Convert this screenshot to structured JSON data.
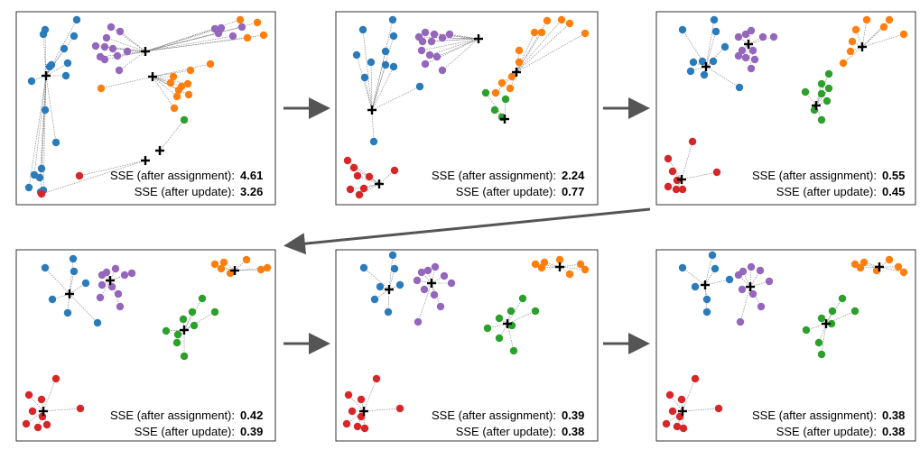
{
  "colors": {
    "blue": "#2b7bba",
    "purple": "#9467bd",
    "orange": "#ff7f0e",
    "green": "#2ca02c",
    "red": "#d62728",
    "centroid": "#000000",
    "arrow": "#555555"
  },
  "sse_label_assignment": "SSE (after assignment):",
  "sse_label_update": "SSE (after update):",
  "panels": [
    {
      "sse_assignment": "4.61",
      "sse_update": "3.26"
    },
    {
      "sse_assignment": "2.24",
      "sse_update": "0.77"
    },
    {
      "sse_assignment": "0.55",
      "sse_update": "0.45"
    },
    {
      "sse_assignment": "0.42",
      "sse_update": "0.39"
    },
    {
      "sse_assignment": "0.39",
      "sse_update": "0.38"
    },
    {
      "sse_assignment": "0.38",
      "sse_update": "0.38"
    }
  ],
  "arrows": [
    {
      "from": "panel-1",
      "to": "panel-2"
    },
    {
      "from": "panel-2",
      "to": "panel-3"
    },
    {
      "from": "panel-3",
      "to": "panel-4"
    },
    {
      "from": "panel-4",
      "to": "panel-5"
    },
    {
      "from": "panel-5",
      "to": "panel-6"
    }
  ]
}
